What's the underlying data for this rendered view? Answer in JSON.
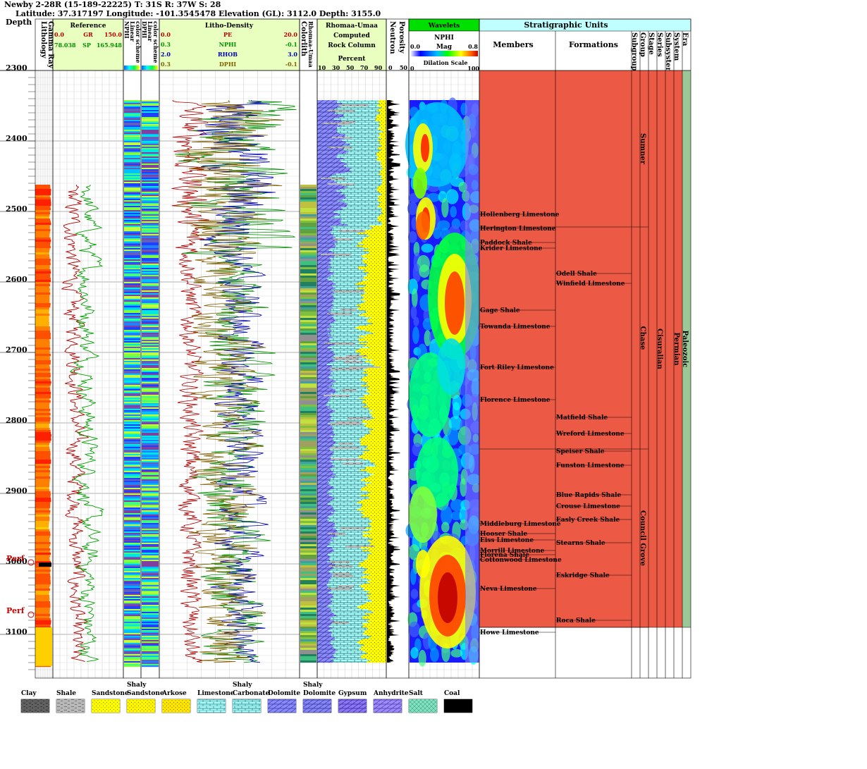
{
  "header": {
    "line1": "Newby 2-28R (15-189-22225) T: 31S R: 37W S: 28",
    "line2": "Latitude: 37.317197 Longitude: -101.3545478 Elevation (GL): 3112.0 Depth: 3155.0"
  },
  "track_titles": {
    "depth": "Depth",
    "lithology": "Lithology",
    "gamma_ray": "Gamma Ray",
    "reference": "Reference",
    "nphi_scheme": [
      "NPHI",
      "Linear",
      "color scheme"
    ],
    "dphi_scheme": [
      "DPHI",
      "Linear",
      "color scheme"
    ],
    "litho_density": "Litho-Density",
    "colorlith": "Colorlith",
    "rhomaa_umaa_vertical": "Rhomaa-Umaa",
    "rhomaa_umaa": "Rhomaa-Umaa",
    "computed": "Computed",
    "rock_column": "Rock Column",
    "percent": "Percent",
    "neutron": "Neutron",
    "porosity": "Porosity",
    "wavelets": "Wavelets",
    "wavelet_curve": "NPHI",
    "mag": "Mag",
    "dilation_scale": "Dilation Scale",
    "strat_units": "Stratigraphic Units",
    "members": "Members",
    "formations": "Formations",
    "strat_cols": [
      "Subgroup",
      "Group",
      "Stage",
      "Series",
      "Subsystem",
      "System",
      "Era"
    ]
  },
  "scales": {
    "gr": {
      "name": "GR",
      "min": "0.0",
      "max": "150.0",
      "color": "#b00000"
    },
    "sp": {
      "name": "SP",
      "min": "78.038",
      "max": "165.948",
      "color": "#009000"
    },
    "pe": {
      "name": "PE",
      "min": "0.0",
      "max": "20.0",
      "color": "#b00000"
    },
    "nphi": {
      "name": "NPHI",
      "min": "0.3",
      "max": "-0.1",
      "color": "#009000"
    },
    "rhob": {
      "name": "RHOB",
      "min": "2.0",
      "max": "3.0",
      "color": "#0000b0"
    },
    "dphi": {
      "name": "DPHI",
      "min": "0.3",
      "max": "-0.1",
      "color": "#806000"
    },
    "percent_ticks": [
      "10",
      "30",
      "50",
      "70",
      "90"
    ],
    "porosity_ticks": [
      "0",
      "50"
    ],
    "mag_ticks": [
      "0.0",
      "0.8"
    ],
    "dilation_ticks": [
      "0",
      "100"
    ]
  },
  "perf_labels": [
    "Perf",
    "Perf"
  ],
  "chart_data": {
    "type": "line",
    "title": "Newby 2-28R (15-189-22225) T: 31S R: 37W S: 28",
    "ylabel": "Depth",
    "depth_range": [
      2300,
      3155
    ],
    "depth_ticks": [
      "2300",
      "2400",
      "2500",
      "2600",
      "2700",
      "2800",
      "2900",
      "3000",
      "3100"
    ],
    "perforations": [
      2998,
      3072
    ],
    "members": [
      {
        "name": "Hollenberg Limestone",
        "top": 2504
      },
      {
        "name": "Herington Limestone",
        "top": 2524
      },
      {
        "name": "Paddock Shale",
        "top": 2544
      },
      {
        "name": "Krider Limestone",
        "top": 2552
      },
      {
        "name": "Gage Shale",
        "top": 2640
      },
      {
        "name": "Towanda Limestone",
        "top": 2663
      },
      {
        "name": "Fort Riley Limestone",
        "top": 2721
      },
      {
        "name": "Florence Limestone",
        "top": 2767
      },
      {
        "name": "Middleburg Limestone",
        "top": 2943
      },
      {
        "name": "Hooser Shale",
        "top": 2957
      },
      {
        "name": "Eiss Limestone",
        "top": 2966
      },
      {
        "name": "Morrill Limestone",
        "top": 2981
      },
      {
        "name": "Florena Shale",
        "top": 2987
      },
      {
        "name": "Cottonwood Limestone",
        "top": 2994
      },
      {
        "name": "Neva Limestone",
        "top": 3035
      },
      {
        "name": "Howe Limestone",
        "top": 3097
      }
    ],
    "formations": [
      {
        "name": "Odell Shale",
        "top": 2588
      },
      {
        "name": "Winfield Limestone",
        "top": 2602
      },
      {
        "name": "Matfield Shale",
        "top": 2792
      },
      {
        "name": "Wreford Limestone",
        "top": 2815
      },
      {
        "name": "Speiser Shale",
        "top": 2840
      },
      {
        "name": "Funston Limestone",
        "top": 2860
      },
      {
        "name": "Blue Rapids Shale",
        "top": 2902
      },
      {
        "name": "Crouse Limestone",
        "top": 2918
      },
      {
        "name": "Easly Creek Shale",
        "top": 2937
      },
      {
        "name": "Stearns Shale",
        "top": 2970
      },
      {
        "name": "Eskridge Shale",
        "top": 3016
      },
      {
        "name": "Roca Shale",
        "top": 3080
      }
    ],
    "subgroups": [
      {
        "name": "Sumner",
        "top": 2300,
        "bottom": 2522
      },
      {
        "name": "Chase",
        "top": 2522,
        "bottom": 2837
      },
      {
        "name": "Council Grove",
        "top": 2837,
        "bottom": 3090
      }
    ],
    "series": [
      {
        "name": "Cisuralian",
        "top": 2300,
        "bottom": 3090
      }
    ],
    "system": [
      {
        "name": "Permian",
        "top": 2300,
        "bottom": 3090
      }
    ],
    "era": [
      {
        "name": "Paleozoic",
        "top": 2300,
        "bottom": 3090
      }
    ]
  },
  "legend": [
    {
      "label": "Clay",
      "color": "#606060",
      "pattern": "clay"
    },
    {
      "label": "Shale",
      "color": "#b8b8b8",
      "pattern": "shale"
    },
    {
      "label": "Sandstone",
      "color": "#ffff00",
      "pattern": "dots"
    },
    {
      "label": "Shaly\nSandstone",
      "color": "#ffd000",
      "pattern": "dots"
    },
    {
      "label": "Arkose",
      "color": "#ff6000",
      "pattern": "dots"
    },
    {
      "label": "Limestone",
      "color": "#a0ffff",
      "pattern": "brick"
    },
    {
      "label": "Shaly\nCarbonate",
      "color": "#80e0e0",
      "pattern": "brick"
    },
    {
      "label": "Dolomite",
      "color": "#8080ff",
      "pattern": "diag"
    },
    {
      "label": "Shaly\nDolomite",
      "color": "#6060d0",
      "pattern": "diag"
    },
    {
      "label": "Gypsum",
      "color": "#8000c0",
      "pattern": "diag"
    },
    {
      "label": "Anhydrite",
      "color": "#ff80ff",
      "pattern": "diag"
    },
    {
      "label": "Salt",
      "color": "#80e0c0",
      "pattern": "cross"
    },
    {
      "label": "Coal",
      "color": "#000000",
      "pattern": "none"
    }
  ]
}
